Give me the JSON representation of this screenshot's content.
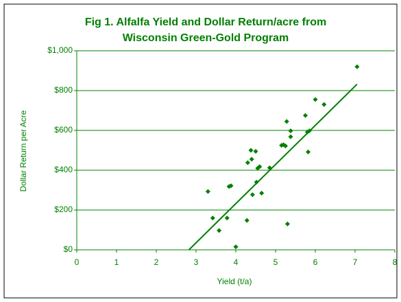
{
  "chart_data": {
    "type": "scatter",
    "title": "Fig 1. Alfalfa Yield and Dollar Return/acre from",
    "subtitle": "Wisconsin Green-Gold Program",
    "x_label": "Yield (t/a)",
    "y_label": "Dollar Return per Acre",
    "color": "#008000",
    "x": [
      3.3,
      3.42,
      3.58,
      3.78,
      3.83,
      3.88,
      4.0,
      4.28,
      4.3,
      4.38,
      4.4,
      4.42,
      4.5,
      4.52,
      4.55,
      4.6,
      4.65,
      4.85,
      5.15,
      5.2,
      5.25,
      5.28,
      5.3,
      5.38,
      5.38,
      5.75,
      5.8,
      5.82,
      5.85,
      6.0,
      6.22,
      7.05
    ],
    "values": [
      293,
      160,
      97,
      160,
      318,
      322,
      15,
      148,
      438,
      500,
      455,
      277,
      495,
      340,
      410,
      418,
      285,
      412,
      525,
      528,
      522,
      645,
      130,
      598,
      568,
      675,
      592,
      492,
      598,
      755,
      730,
      920
    ],
    "trendline": {
      "x": [
        2.82,
        7.05
      ],
      "y": [
        0,
        832
      ]
    },
    "xlim": [
      0,
      8
    ],
    "xticks": [
      0,
      1,
      2,
      3,
      4,
      5,
      6,
      7,
      8
    ],
    "ylim": [
      0,
      1000
    ],
    "yticks": [
      {
        "value": 0,
        "label": "$0"
      },
      {
        "value": 200,
        "label": "$200"
      },
      {
        "value": 400,
        "label": "$400"
      },
      {
        "value": 600,
        "label": "$600"
      },
      {
        "value": 800,
        "label": "$800"
      },
      {
        "value": 1000,
        "label": "$1,000"
      }
    ],
    "grid": true
  }
}
